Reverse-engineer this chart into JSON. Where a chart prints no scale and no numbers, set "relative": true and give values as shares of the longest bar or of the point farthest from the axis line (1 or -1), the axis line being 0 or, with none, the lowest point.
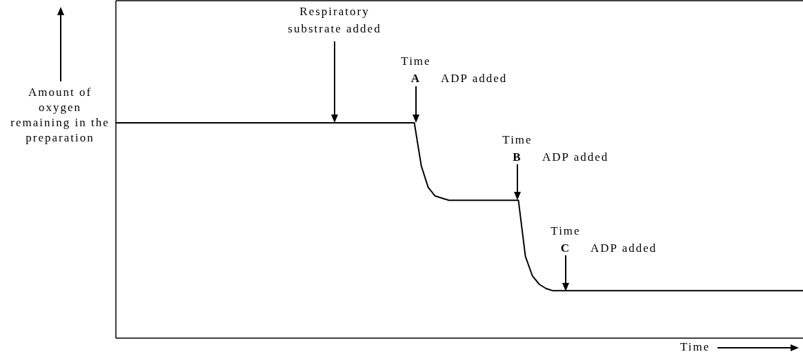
{
  "chart_data": {
    "type": "line",
    "relative": true,
    "color": "#000000",
    "ylabel": "Amount of oxygen remaining in the preparation",
    "xlabel": "Time",
    "annotations": [
      "Respiratory substrate added",
      "Time A ADP added",
      "Time B ADP added",
      "Time C ADP added"
    ],
    "categories": [
      null,
      null,
      null,
      null,
      null,
      null,
      null,
      null,
      null,
      null,
      null,
      null,
      null,
      null,
      null,
      null,
      null,
      null,
      null,
      null,
      null,
      null,
      null,
      null,
      null,
      null,
      null,
      null,
      null,
      null,
      null,
      null,
      null,
      null,
      null,
      null,
      null,
      null,
      null,
      null,
      null,
      null,
      null,
      null,
      null,
      null,
      null,
      null,
      null,
      null,
      null,
      null,
      null,
      null,
      null,
      null,
      null,
      null,
      null,
      null,
      null,
      null,
      null,
      null,
      null,
      null,
      null,
      null,
      null,
      null,
      null,
      null,
      null,
      null,
      null,
      null,
      null,
      null,
      null,
      null,
      null,
      null,
      null,
      null,
      null,
      null,
      null,
      null,
      null,
      null,
      null,
      null,
      null,
      null,
      null,
      null,
      null,
      null,
      null,
      null
    ],
    "values": [
      1,
      1,
      1,
      1,
      1,
      1,
      1,
      1,
      1,
      1,
      1,
      1,
      1,
      1,
      1,
      1,
      1,
      1,
      1,
      1,
      1,
      1,
      1,
      1,
      1,
      1,
      1,
      1,
      1,
      1,
      1,
      1,
      1,
      1,
      1,
      1,
      1,
      1,
      1,
      1,
      1,
      1,
      1,
      1,
      0.8,
      0.7,
      0.66,
      0.65,
      0.64,
      0.64,
      0.64,
      0.64,
      0.64,
      0.64,
      0.64,
      0.64,
      0.64,
      0.64,
      0.64,
      0.38,
      0.29,
      0.25,
      0.23,
      0.22,
      0.22,
      0.22,
      0.22,
      0.22,
      0.22,
      0.22,
      0.22,
      0.22,
      0.22,
      0.22,
      0.22,
      0.22,
      0.22,
      0.22,
      0.22,
      0.22,
      0.22,
      0.22,
      0.22,
      0.22,
      0.22,
      0.22,
      0.22,
      0.22,
      0.22,
      0.22,
      0.22,
      0.22,
      0.22,
      0.22,
      0.22,
      0.22,
      0.22,
      0.22,
      0.22,
      0.22
    ]
  }
}
